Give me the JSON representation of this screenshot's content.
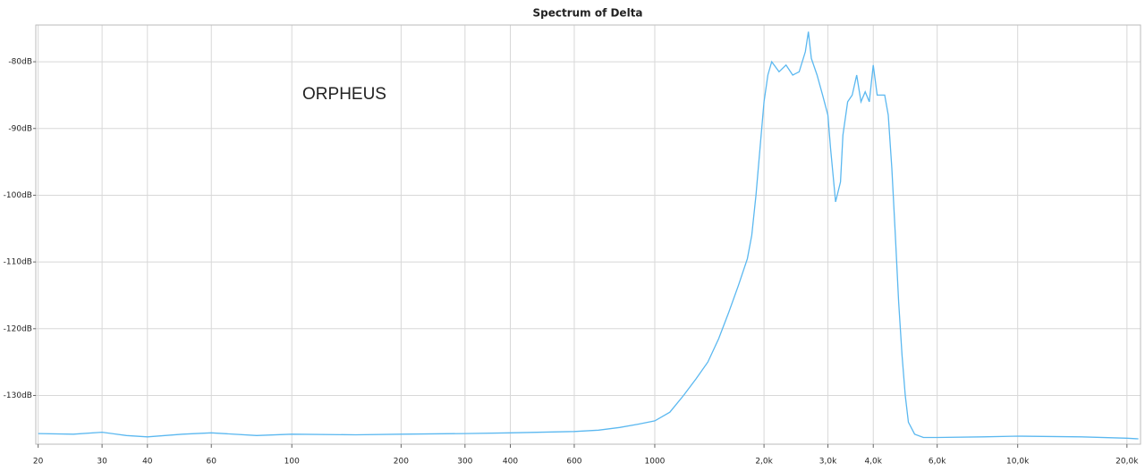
{
  "chart_data": {
    "type": "line",
    "title": "Spectrum of Delta",
    "annotation": "ORPHEUS",
    "x_scale": "log",
    "grid": true,
    "xlim": [
      19.7,
      21800
    ],
    "ylim": [
      -137.3,
      -74.5
    ],
    "xticks": [
      20,
      30,
      40,
      60,
      100,
      200,
      300,
      400,
      600,
      1000,
      {
        "value": 2000,
        "label": "2,0k"
      },
      {
        "value": 3000,
        "label": "3,0k"
      },
      {
        "value": 4000,
        "label": "4,0k"
      },
      {
        "value": 6000,
        "label": "6,0k"
      },
      {
        "value": 10000,
        "label": "10,0k"
      },
      {
        "value": 20000,
        "label": "20,0k"
      }
    ],
    "yticks": [
      {
        "value": -80,
        "label": "-80dB"
      },
      {
        "value": -90,
        "label": "-90dB"
      },
      {
        "value": -100,
        "label": "-100dB"
      },
      {
        "value": -110,
        "label": "-110dB"
      },
      {
        "value": -120,
        "label": "-120dB"
      },
      {
        "value": -130,
        "label": "-130dB"
      }
    ],
    "x": [
      20,
      25,
      30,
      35,
      40,
      50,
      60,
      80,
      100,
      150,
      200,
      300,
      400,
      600,
      700,
      800,
      900,
      1000,
      1100,
      1200,
      1300,
      1400,
      1500,
      1600,
      1700,
      1800,
      1850,
      1900,
      1950,
      2000,
      2050,
      2100,
      2200,
      2300,
      2400,
      2500,
      2600,
      2650,
      2700,
      2800,
      2900,
      3000,
      3050,
      3100,
      3150,
      3250,
      3300,
      3400,
      3500,
      3600,
      3700,
      3800,
      3900,
      4000,
      4100,
      4300,
      4400,
      4500,
      4600,
      4700,
      4800,
      4900,
      5000,
      5200,
      5500,
      6000,
      8000,
      10000,
      15000,
      20000,
      21500
    ],
    "series": [
      {
        "name": "Delta",
        "color": "#5bb8f0",
        "values": [
          -135.7,
          -135.8,
          -135.5,
          -136,
          -136.2,
          -135.8,
          -135.6,
          -136,
          -135.8,
          -135.9,
          -135.8,
          -135.7,
          -135.6,
          -135.4,
          -135.2,
          -134.8,
          -134.3,
          -133.8,
          -132.5,
          -130,
          -127.5,
          -125,
          -121.5,
          -117.5,
          -113.5,
          -109.5,
          -106,
          -100,
          -93,
          -86,
          -82,
          -80,
          -81.5,
          -80.5,
          -82,
          -81.5,
          -78.5,
          -75.5,
          -79.5,
          -82,
          -85,
          -88,
          -93,
          -97,
          -101,
          -98,
          -91,
          -86,
          -85,
          -82,
          -86,
          -84.5,
          -86,
          -80.5,
          -85,
          -85,
          -88,
          -96,
          -106,
          -116,
          -124,
          -130,
          -134,
          -135.8,
          -136.3,
          -136.3,
          -136.2,
          -136.1,
          -136.2,
          -136.4,
          -136.5
        ]
      }
    ]
  }
}
